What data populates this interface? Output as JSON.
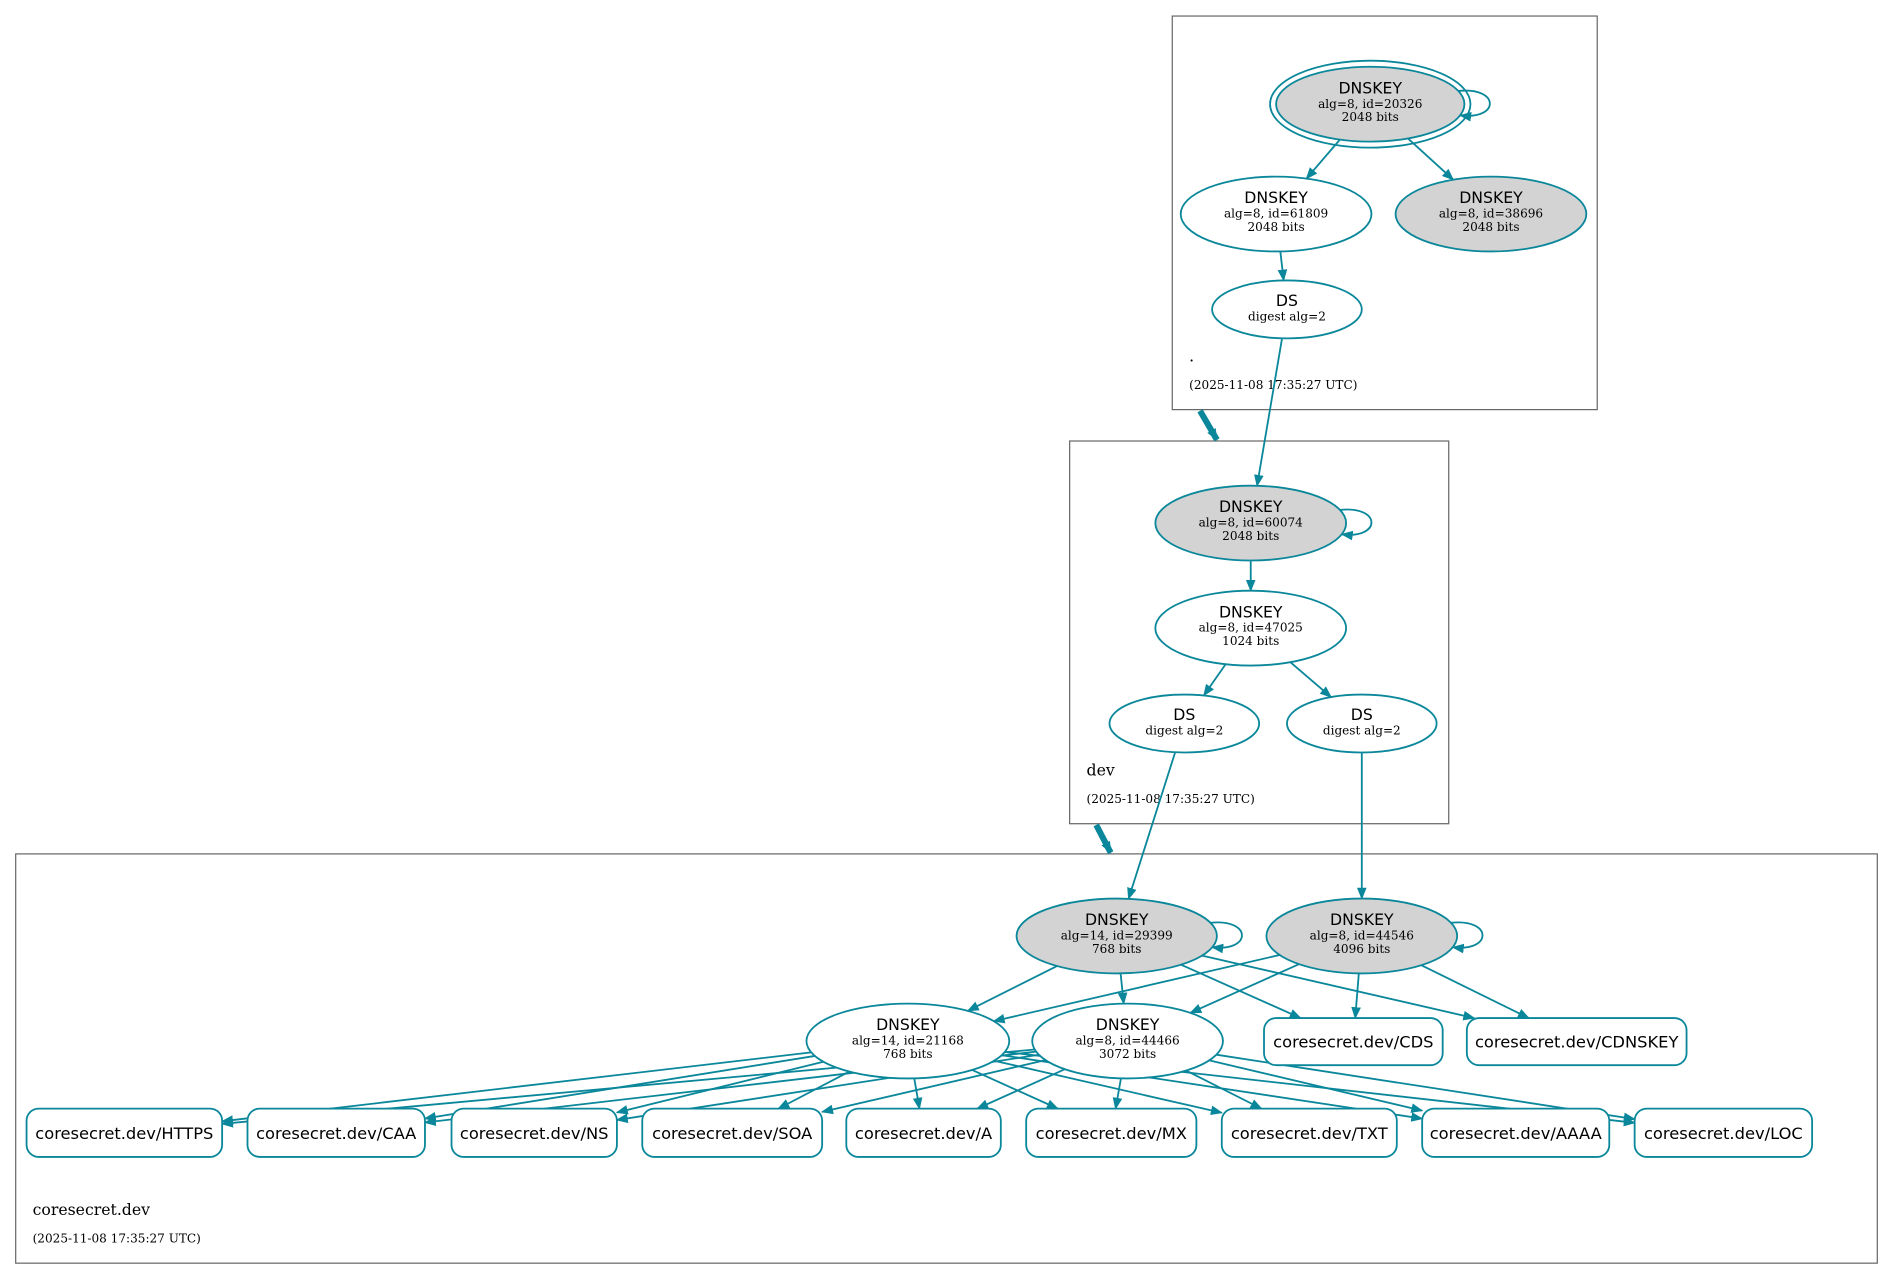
{
  "colors": {
    "edge": "#0a879a",
    "filled": "#d3d3d3",
    "cluster": "#666666"
  },
  "clusters": {
    "root": {
      "name": ".",
      "timestamp": "(2025-11-08 17:35:27 UTC)"
    },
    "dev": {
      "name": "dev",
      "timestamp": "(2025-11-08 17:35:27 UTC)"
    },
    "coresecret": {
      "name": "coresecret.dev",
      "timestamp": "(2025-11-08 17:35:27 UTC)"
    }
  },
  "nodes": {
    "k20326": {
      "type": "DNSKEY",
      "l1": "alg=8, id=20326",
      "l2": "2048 bits",
      "filled": true,
      "trust_anchor": true
    },
    "k61809": {
      "type": "DNSKEY",
      "l1": "alg=8, id=61809",
      "l2": "2048 bits",
      "filled": false
    },
    "k38696": {
      "type": "DNSKEY",
      "l1": "alg=8, id=38696",
      "l2": "2048 bits",
      "filled": true
    },
    "dsroot": {
      "type": "DS",
      "l1": "digest alg=2",
      "l2": ""
    },
    "k60074": {
      "type": "DNSKEY",
      "l1": "alg=8, id=60074",
      "l2": "2048 bits",
      "filled": true
    },
    "k47025": {
      "type": "DNSKEY",
      "l1": "alg=8, id=47025",
      "l2": "1024 bits",
      "filled": false
    },
    "ds1": {
      "type": "DS",
      "l1": "digest alg=2",
      "l2": ""
    },
    "ds2": {
      "type": "DS",
      "l1": "digest alg=2",
      "l2": ""
    },
    "k29399": {
      "type": "DNSKEY",
      "l1": "alg=14, id=29399",
      "l2": "768 bits",
      "filled": true
    },
    "k44546": {
      "type": "DNSKEY",
      "l1": "alg=8, id=44546",
      "l2": "4096 bits",
      "filled": true
    },
    "k21168": {
      "type": "DNSKEY",
      "l1": "alg=14, id=21168",
      "l2": "768 bits",
      "filled": false
    },
    "k44466": {
      "type": "DNSKEY",
      "l1": "alg=8, id=44466",
      "l2": "3072 bits",
      "filled": false
    }
  },
  "rrsets": {
    "cds": "coresecret.dev/CDS",
    "cdnskey": "coresecret.dev/CDNSKEY",
    "https": "coresecret.dev/HTTPS",
    "caa": "coresecret.dev/CAA",
    "ns": "coresecret.dev/NS",
    "soa": "coresecret.dev/SOA",
    "a": "coresecret.dev/A",
    "mx": "coresecret.dev/MX",
    "txt": "coresecret.dev/TXT",
    "aaaa": "coresecret.dev/AAAA",
    "loc": "coresecret.dev/LOC"
  }
}
